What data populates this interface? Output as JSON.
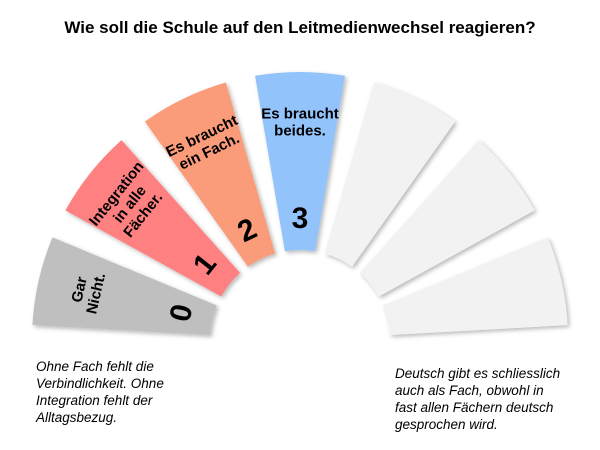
{
  "title": "Wie soll die Schule auf den Leitmedienwechsel reagieren?",
  "segments": [
    {
      "number": "0",
      "label_lines": [
        "Gar",
        "Nicht."
      ],
      "color": "#bfbfbf"
    },
    {
      "number": "1",
      "label_lines": [
        "Integration",
        "in alle",
        "Fächer."
      ],
      "color": "#ff8080"
    },
    {
      "number": "2",
      "label_lines": [
        "Es braucht",
        "ein Fach."
      ],
      "color": "#fa9b7a"
    },
    {
      "number": "3",
      "label_lines": [
        "Es braucht",
        "beides."
      ],
      "color": "#93c3fb"
    },
    {
      "number": "",
      "label_lines": [],
      "color": "#f2f2f2"
    },
    {
      "number": "",
      "label_lines": [],
      "color": "#f2f2f2"
    },
    {
      "number": "",
      "label_lines": [],
      "color": "#f2f2f2"
    }
  ],
  "notes": {
    "left": "Ohne Fach fehlt die\nVerbindlichkeit.  Ohne\nIntegration fehlt der\nAlltagsbezug.",
    "right": "Deutsch gibt es schliesslich\nauch als Fach, obwohl in\nfast allen Fächern deutsch\ngesprochen wird."
  }
}
